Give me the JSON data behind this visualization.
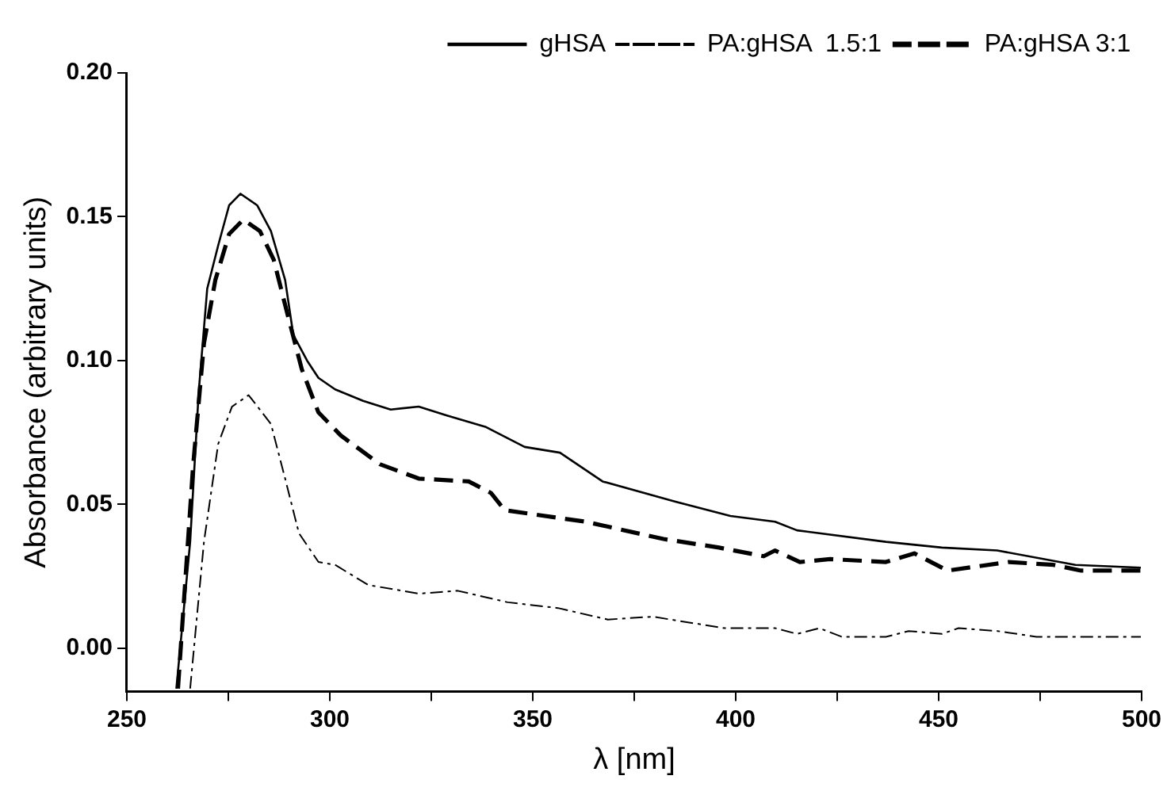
{
  "chart_data": {
    "type": "line",
    "xlabel": "λ [nm]",
    "ylabel": "Absorbance (arbitrary units)",
    "xlim": [
      250,
      500
    ],
    "xticks": [
      250,
      {
        "value": 275,
        "label": null
      },
      300,
      {
        "value": 325,
        "label": null
      },
      350,
      {
        "value": 375,
        "label": null
      },
      400,
      {
        "value": 425,
        "label": null
      },
      450,
      {
        "value": 475,
        "label": null
      },
      500
    ],
    "ylim": [
      -0.015,
      0.2
    ],
    "yticks": [
      {
        "value": 0,
        "label": "0.00"
      },
      0.05,
      {
        "value": 0.1,
        "label": "0.10"
      },
      0.15,
      {
        "value": 0.2,
        "label": "0.20"
      }
    ],
    "grid": false,
    "legend": "top right",
    "marker": "none",
    "series": [
      {
        "name": "gHSA",
        "color": "#000000",
        "line_style": "solid",
        "x": [
          262.2,
          265.6,
          267.7,
          269.8,
          272.5,
          275.2,
          278,
          282.1,
          285.5,
          289,
          291,
          294.4,
          297.2,
          301.3,
          308.2,
          315,
          321.9,
          328.7,
          338.3,
          348,
          356.7,
          367.2,
          385,
          398.7,
          409.7,
          415.1,
          437,
          450.8,
          464.4,
          483.7,
          499.8
        ],
        "values": [
          -0.014,
          0.037,
          0.089,
          0.125,
          0.14,
          0.154,
          0.158,
          0.154,
          0.145,
          0.128,
          0.109,
          0.1,
          0.094,
          0.09,
          0.086,
          0.083,
          0.084,
          0.081,
          0.077,
          0.07,
          0.068,
          0.058,
          0.051,
          0.046,
          0.044,
          0.041,
          0.037,
          0.035,
          0.034,
          0.029,
          0.028
        ]
      },
      {
        "name": "PA:gHSA  1.5:1",
        "color": "#000000",
        "line_style": "dashdot",
        "x": [
          265.6,
          269,
          272.5,
          275.9,
          280,
          285.5,
          289,
          292.4,
          297.2,
          301.3,
          309.5,
          321.9,
          331.5,
          343.8,
          356.2,
          368.5,
          379.5,
          397.3,
          409.7,
          415.1,
          420.6,
          426.1,
          437,
          442.6,
          450.8,
          454.9,
          464.5,
          474.1,
          483.7,
          499.8
        ],
        "values": [
          -0.014,
          0.037,
          0.071,
          0.084,
          0.088,
          0.078,
          0.059,
          0.04,
          0.03,
          0.029,
          0.022,
          0.019,
          0.02,
          0.016,
          0.014,
          0.01,
          0.011,
          0.007,
          0.007,
          0.005,
          0.007,
          0.004,
          0.004,
          0.006,
          0.005,
          0.007,
          0.006,
          0.004,
          0.004,
          0.004
        ]
      },
      {
        "name": "PA:gHSA 3:1",
        "color": "#000000",
        "line_style": "dashed",
        "x": [
          262.6,
          266.3,
          269,
          271.8,
          275.2,
          278.7,
          282.8,
          286.2,
          289.6,
          293.1,
          297.2,
          302.7,
          312.3,
          321.9,
          334.2,
          339.7,
          343.1,
          363,
          382.2,
          395.9,
          406.9,
          409.7,
          415.8,
          423.3,
          437,
          444,
          452.2,
          467.3,
          478.3,
          485.1,
          499.8
        ],
        "values": [
          -0.014,
          0.063,
          0.106,
          0.128,
          0.144,
          0.149,
          0.145,
          0.135,
          0.116,
          0.097,
          0.082,
          0.074,
          0.064,
          0.059,
          0.058,
          0.054,
          0.048,
          0.044,
          0.038,
          0.035,
          0.032,
          0.034,
          0.03,
          0.031,
          0.03,
          0.033,
          0.027,
          0.03,
          0.029,
          0.027,
          0.027
        ]
      }
    ]
  }
}
